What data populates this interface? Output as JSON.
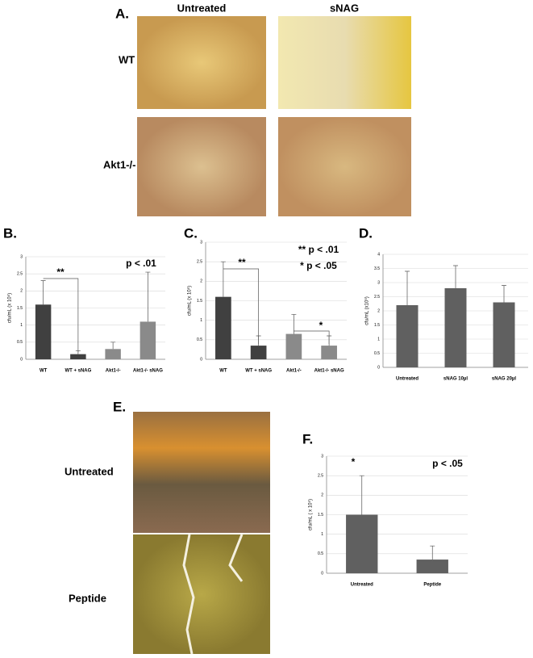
{
  "panel_a": {
    "label": "A.",
    "columns": [
      "Untreated",
      "sNAG"
    ],
    "rows": [
      "WT",
      "Akt1-/-"
    ]
  },
  "panel_e": {
    "label": "E.",
    "rows": [
      "Untreated",
      "Peptide"
    ]
  },
  "chart_data": [
    {
      "type": "bar",
      "panel": "B.",
      "ylabel": "cfu/mL (x 10⁵)",
      "categories": [
        "WT",
        "WT + sNAG",
        "Akt1-/-",
        "Akt1-/-  sNAG"
      ],
      "values": [
        1.6,
        0.15,
        0.3,
        1.1
      ],
      "errors": [
        0.7,
        0.1,
        0.2,
        1.45
      ],
      "colors": [
        "#404040",
        "#404040",
        "#8a8a8a",
        "#8a8a8a"
      ],
      "ylim": [
        0,
        3
      ],
      "yticks": [
        0,
        0.5,
        1,
        1.5,
        2,
        2.5,
        3
      ],
      "grid": true,
      "annotations": [
        "**",
        "p < .01"
      ]
    },
    {
      "type": "bar",
      "panel": "C.",
      "ylabel": "cfu/mL (x 10⁵)",
      "categories": [
        "WT",
        "WT + sNAG",
        "Akt1-/-",
        "Akt1-/-  sNAG"
      ],
      "values": [
        1.6,
        0.35,
        0.65,
        0.35
      ],
      "errors": [
        0.9,
        0.25,
        0.5,
        0.25
      ],
      "colors": [
        "#404040",
        "#404040",
        "#8a8a8a",
        "#8a8a8a"
      ],
      "ylim": [
        0,
        3
      ],
      "yticks": [
        0,
        0.5,
        1,
        1.5,
        2,
        2.5,
        3
      ],
      "grid": true,
      "annotations": [
        "**",
        "*",
        "** p < .01",
        "* p < .05"
      ]
    },
    {
      "type": "bar",
      "panel": "D.",
      "ylabel": "cfu/mL  (x10⁵)",
      "categories": [
        "Untreated",
        "sNAG 10µl",
        "sNAG 20µl"
      ],
      "values": [
        2.2,
        2.8,
        2.3
      ],
      "errors": [
        1.2,
        0.8,
        0.6
      ],
      "colors": [
        "#606060",
        "#606060",
        "#606060"
      ],
      "ylim": [
        0,
        4
      ],
      "yticks": [
        0,
        0.5,
        1,
        1.5,
        2,
        2.5,
        3,
        3.5,
        4
      ],
      "grid": true,
      "annotations": []
    },
    {
      "type": "bar",
      "panel": "F.",
      "ylabel": "cfu/mL ( x 10⁵)",
      "categories": [
        "Untreated",
        "Peptide"
      ],
      "values": [
        1.5,
        0.35
      ],
      "errors": [
        1.0,
        0.35
      ],
      "colors": [
        "#606060",
        "#606060"
      ],
      "ylim": [
        0,
        3
      ],
      "yticks": [
        0,
        0.5,
        1,
        1.5,
        2,
        2.5,
        3
      ],
      "grid": true,
      "annotations": [
        "*",
        "p < .05"
      ]
    }
  ]
}
